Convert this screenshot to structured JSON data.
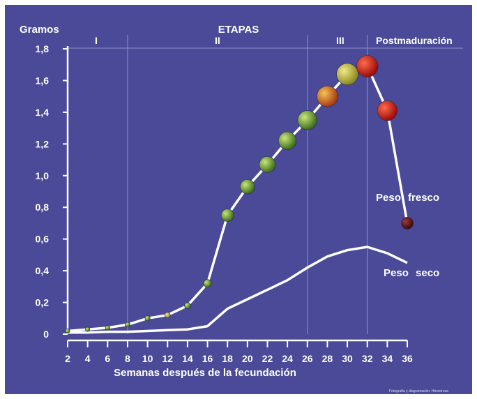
{
  "colors": {
    "background": "#4a4a98",
    "line": "#ffffff",
    "stage_line": "#8e8ec8"
  },
  "chart_data": {
    "type": "line",
    "title": "ETAPAS",
    "ylabel": "Gramos",
    "xlabel": "Semanas después de la fecundación",
    "xlim": [
      2,
      36
    ],
    "ylim": [
      0,
      1.8
    ],
    "x_ticks": [
      "2",
      "4",
      "6",
      "8",
      "10",
      "12",
      "14",
      "16",
      "18",
      "20",
      "22",
      "24",
      "26",
      "28",
      "30",
      "32",
      "34",
      "36"
    ],
    "y_ticks": [
      "0",
      "0,2",
      "0,4",
      "0,6",
      "0,8",
      "1,0",
      "1,2",
      "1,4",
      "1,6",
      "1,8"
    ],
    "grid": false,
    "stages": [
      {
        "label": "I",
        "from": 2,
        "to": 8
      },
      {
        "label": "II",
        "from": 8,
        "to": 26
      },
      {
        "label": "III",
        "from": 26,
        "to": 32
      },
      {
        "label": "Postmaduración",
        "from": 32,
        "to": 36
      }
    ],
    "series": [
      {
        "name": "Peso fresco",
        "x": [
          2,
          4,
          6,
          8,
          10,
          12,
          14,
          16,
          18,
          20,
          22,
          24,
          26,
          28,
          30,
          32,
          34,
          36
        ],
        "values": [
          0.02,
          0.03,
          0.04,
          0.06,
          0.1,
          0.12,
          0.18,
          0.32,
          0.75,
          0.93,
          1.07,
          1.22,
          1.35,
          1.5,
          1.64,
          1.69,
          1.41,
          0.7
        ]
      },
      {
        "name": "Peso seco",
        "x": [
          2,
          4,
          6,
          8,
          10,
          12,
          14,
          16,
          18,
          20,
          22,
          24,
          26,
          28,
          30,
          32,
          34,
          36
        ],
        "values": [
          0.01,
          0.01,
          0.015,
          0.015,
          0.02,
          0.025,
          0.03,
          0.05,
          0.16,
          0.22,
          0.28,
          0.34,
          0.42,
          0.49,
          0.53,
          0.55,
          0.51,
          0.45
        ]
      }
    ]
  },
  "credit": "Fotografía y diagramación: Hinostroza"
}
